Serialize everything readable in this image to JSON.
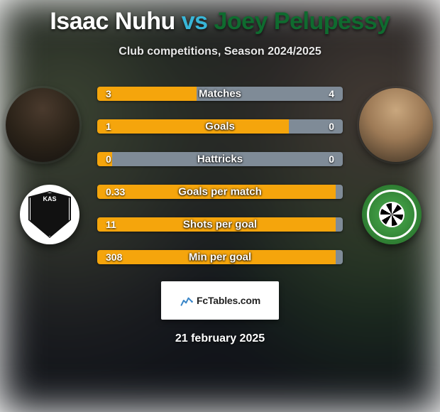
{
  "title": {
    "player1": "Isaac Nuhu",
    "vs": "vs",
    "player2": "Joey Pelupessy",
    "player1_color": "#ffffff",
    "vs_color": "#38b6d8",
    "player2_color": "#0f6b2f"
  },
  "subtitle": "Club competitions, Season 2024/2025",
  "subtitle_color": "#e8e8e8",
  "avatars": {
    "left_alt": "Isaac Nuhu photo",
    "right_alt": "Joey Pelupessy photo"
  },
  "clubs": {
    "left_name": "KAS Eupen",
    "left_text": "KAS",
    "right_name": "Lommel United"
  },
  "bars": {
    "track_width": 346,
    "left_color": "#f5a50c",
    "right_color": "#7f8b97",
    "rows": [
      {
        "label": "Matches",
        "left_raw": 3,
        "right_raw": 4,
        "left_fmt": "3",
        "right_fmt": "4",
        "left_pct": 40.5,
        "right_pct": 59.5
      },
      {
        "label": "Goals",
        "left_raw": 1,
        "right_raw": 0,
        "left_fmt": "1",
        "right_fmt": "0",
        "left_pct": 78.0,
        "right_pct": 22.0
      },
      {
        "label": "Hattricks",
        "left_raw": 0,
        "right_raw": 0,
        "left_fmt": "0",
        "right_fmt": "0",
        "left_pct": 6.0,
        "right_pct": 94.0
      },
      {
        "label": "Goals per match",
        "left_raw": 0.33,
        "right_raw": 0,
        "left_fmt": "0.33",
        "right_fmt": "",
        "left_pct": 97.0,
        "right_pct": 3.0
      },
      {
        "label": "Shots per goal",
        "left_raw": 11,
        "right_raw": null,
        "left_fmt": "11",
        "right_fmt": "",
        "left_pct": 97.0,
        "right_pct": 3.0
      },
      {
        "label": "Min per goal",
        "left_raw": 308,
        "right_raw": null,
        "left_fmt": "308",
        "right_fmt": "",
        "left_pct": 97.0,
        "right_pct": 3.0
      }
    ]
  },
  "branding": {
    "site": "FcTables.com"
  },
  "date": "21 february 2025",
  "background": {
    "base": "#1e232c"
  }
}
